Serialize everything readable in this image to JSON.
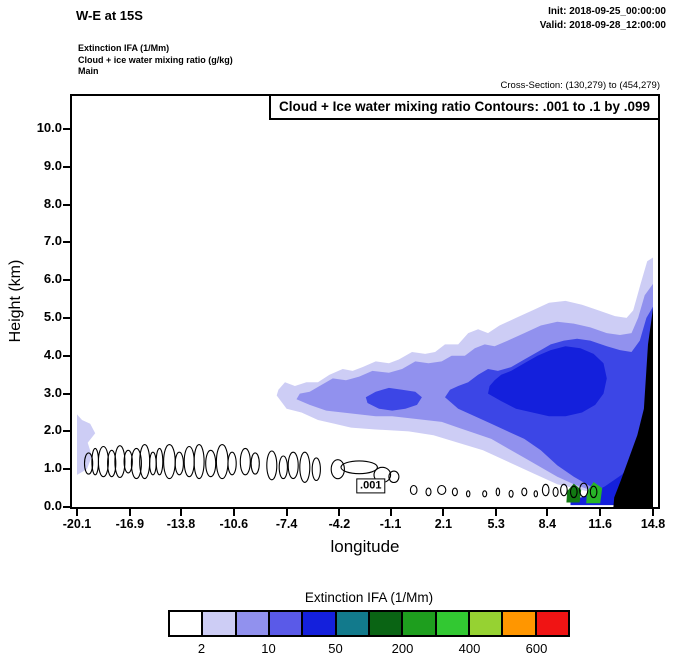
{
  "header": {
    "title": "W-E at 15S",
    "init": "Init: 2018-09-25_00:00:00",
    "valid": "Valid: 2018-09-28_12:00:00",
    "layers": [
      "Extinction IFA  (1/Mm)",
      "Cloud + ice water mixing ratio   (g/kg)",
      "Main"
    ],
    "cross_section": "Cross-Section: (130,279) to (454,279)"
  },
  "chart_data": {
    "type": "contour",
    "title": "Cloud + Ice water mixing ratio Contours: .001 to .1 by .099",
    "xlabel": "longitude",
    "ylabel": "Height (km)",
    "xlim": [
      -20.1,
      14.8
    ],
    "ylim": [
      0,
      10.87
    ],
    "grid": false,
    "xticks": [
      "-20.1",
      "-16.9",
      "-13.8",
      "-10.6",
      "-7.4",
      "-4.2",
      "-1.1",
      "2.1",
      "5.3",
      "8.4",
      "11.6",
      "14.8"
    ],
    "yticks": [
      "0.0",
      "1.0",
      "2.0",
      "3.0",
      "4.0",
      "5.0",
      "6.0",
      "7.0",
      "8.0",
      "9.0",
      "10.0"
    ],
    "contour_label": {
      "text": ".001",
      "lon": -2.3,
      "km": 0.55
    },
    "contour_levels_note": ".001 to .1 by .099",
    "regions": [
      {
        "name": "extinction-2-10-west-edge",
        "color": "#cdcdf5",
        "points": [
          [
            -20.1,
            0.85
          ],
          [
            -19.5,
            1.0
          ],
          [
            -19.2,
            1.35
          ],
          [
            -19.45,
            1.7
          ],
          [
            -19.0,
            1.95
          ],
          [
            -19.3,
            2.2
          ],
          [
            -19.8,
            2.3
          ],
          [
            -20.1,
            2.45
          ]
        ]
      },
      {
        "name": "extinction-2-10-main",
        "color": "#cdcdf5",
        "points": [
          [
            -8.0,
            2.95
          ],
          [
            -7.4,
            2.6
          ],
          [
            -6.5,
            2.5
          ],
          [
            -5.5,
            2.3
          ],
          [
            -4.5,
            2.2
          ],
          [
            -3.5,
            2.1
          ],
          [
            -2.0,
            2.05
          ],
          [
            0.0,
            2.0
          ],
          [
            1.5,
            1.9
          ],
          [
            3.0,
            1.7
          ],
          [
            4.5,
            1.5
          ],
          [
            6.0,
            1.2
          ],
          [
            7.5,
            0.9
          ],
          [
            9.0,
            0.6
          ],
          [
            10.5,
            0.45
          ],
          [
            12.0,
            0.3
          ],
          [
            13.5,
            0.15
          ],
          [
            14.8,
            0.1
          ],
          [
            14.8,
            6.6
          ],
          [
            14.45,
            6.5
          ],
          [
            14.05,
            5.9
          ],
          [
            13.6,
            5.2
          ],
          [
            13.2,
            5.0
          ],
          [
            12.5,
            5.05
          ],
          [
            11.5,
            5.2
          ],
          [
            10.5,
            5.35
          ],
          [
            9.5,
            5.45
          ],
          [
            8.5,
            5.4
          ],
          [
            7.5,
            5.2
          ],
          [
            6.5,
            5.0
          ],
          [
            5.5,
            4.8
          ],
          [
            4.8,
            4.6
          ],
          [
            4.2,
            4.7
          ],
          [
            3.6,
            4.6
          ],
          [
            3.0,
            4.3
          ],
          [
            2.2,
            4.3
          ],
          [
            1.6,
            4.1
          ],
          [
            1.0,
            4.05
          ],
          [
            0.2,
            4.1
          ],
          [
            -0.6,
            3.9
          ],
          [
            -1.2,
            3.8
          ],
          [
            -2.0,
            3.85
          ],
          [
            -2.8,
            3.7
          ],
          [
            -3.4,
            3.6
          ],
          [
            -4.0,
            3.65
          ],
          [
            -4.8,
            3.5
          ],
          [
            -5.5,
            3.3
          ],
          [
            -6.2,
            3.3
          ],
          [
            -6.9,
            3.2
          ],
          [
            -7.5,
            3.3
          ],
          [
            -7.9,
            3.1
          ]
        ]
      },
      {
        "name": "extinction-10-50",
        "color": "#9191ee",
        "points": [
          [
            -6.8,
            2.85
          ],
          [
            -6.0,
            2.7
          ],
          [
            -5.0,
            2.55
          ],
          [
            -4.0,
            2.5
          ],
          [
            -3.0,
            2.45
          ],
          [
            -2.0,
            2.4
          ],
          [
            -1.0,
            2.4
          ],
          [
            0.0,
            2.35
          ],
          [
            1.0,
            2.3
          ],
          [
            2.0,
            2.25
          ],
          [
            3.0,
            2.1
          ],
          [
            4.0,
            1.95
          ],
          [
            5.0,
            1.8
          ],
          [
            6.0,
            1.55
          ],
          [
            7.0,
            1.3
          ],
          [
            8.0,
            1.05
          ],
          [
            9.0,
            0.8
          ],
          [
            10.0,
            0.6
          ],
          [
            11.0,
            0.45
          ],
          [
            12.0,
            0.3
          ],
          [
            13.0,
            0.2
          ],
          [
            14.8,
            0.15
          ],
          [
            14.8,
            5.9
          ],
          [
            14.3,
            5.6
          ],
          [
            13.9,
            5.0
          ],
          [
            13.5,
            4.6
          ],
          [
            12.8,
            4.55
          ],
          [
            12.0,
            4.6
          ],
          [
            11.0,
            4.75
          ],
          [
            10.0,
            4.85
          ],
          [
            9.0,
            4.9
          ],
          [
            8.0,
            4.8
          ],
          [
            7.0,
            4.6
          ],
          [
            6.0,
            4.4
          ],
          [
            5.2,
            4.25
          ],
          [
            4.6,
            4.3
          ],
          [
            4.0,
            4.2
          ],
          [
            3.4,
            4.0
          ],
          [
            2.6,
            4.0
          ],
          [
            2.0,
            3.85
          ],
          [
            1.2,
            3.8
          ],
          [
            0.4,
            3.85
          ],
          [
            -0.4,
            3.65
          ],
          [
            -1.2,
            3.55
          ],
          [
            -2.2,
            3.6
          ],
          [
            -3.0,
            3.45
          ],
          [
            -3.8,
            3.35
          ],
          [
            -4.6,
            3.4
          ],
          [
            -5.4,
            3.2
          ],
          [
            -6.0,
            3.05
          ],
          [
            -6.6,
            3.0
          ]
        ]
      },
      {
        "name": "extinction-50-200-main",
        "color": "#3c46e6",
        "points": [
          [
            2.2,
            2.9
          ],
          [
            3.0,
            2.6
          ],
          [
            4.0,
            2.4
          ],
          [
            5.0,
            2.2
          ],
          [
            6.0,
            2.0
          ],
          [
            7.0,
            1.8
          ],
          [
            8.0,
            1.5
          ],
          [
            9.0,
            1.1
          ],
          [
            10.0,
            0.8
          ],
          [
            11.0,
            0.55
          ],
          [
            12.0,
            0.4
          ],
          [
            13.0,
            0.3
          ],
          [
            14.8,
            0.25
          ],
          [
            14.8,
            5.3
          ],
          [
            14.4,
            5.0
          ],
          [
            14.0,
            4.4
          ],
          [
            13.5,
            4.1
          ],
          [
            12.8,
            4.15
          ],
          [
            12.0,
            4.25
          ],
          [
            11.0,
            4.4
          ],
          [
            10.2,
            4.45
          ],
          [
            9.4,
            4.4
          ],
          [
            8.6,
            4.3
          ],
          [
            7.8,
            4.1
          ],
          [
            7.0,
            3.9
          ],
          [
            6.2,
            3.7
          ],
          [
            5.4,
            3.6
          ],
          [
            4.8,
            3.65
          ],
          [
            4.2,
            3.5
          ],
          [
            3.6,
            3.3
          ],
          [
            3.0,
            3.2
          ],
          [
            2.5,
            3.1
          ]
        ]
      },
      {
        "name": "extinction-50-200-west",
        "color": "#3c46e6",
        "points": [
          [
            -2.5,
            2.75
          ],
          [
            -1.8,
            2.6
          ],
          [
            -1.0,
            2.55
          ],
          [
            -0.2,
            2.6
          ],
          [
            0.5,
            2.7
          ],
          [
            0.8,
            2.9
          ],
          [
            0.4,
            3.05
          ],
          [
            -0.4,
            3.1
          ],
          [
            -1.2,
            3.15
          ],
          [
            -2.0,
            3.05
          ],
          [
            -2.6,
            2.9
          ]
        ]
      },
      {
        "name": "extinction-200-400-core",
        "color": "#1420dc",
        "points": [
          [
            4.8,
            3.0
          ],
          [
            5.6,
            2.8
          ],
          [
            6.5,
            2.6
          ],
          [
            7.5,
            2.5
          ],
          [
            8.5,
            2.4
          ],
          [
            9.5,
            2.4
          ],
          [
            10.5,
            2.5
          ],
          [
            11.3,
            2.7
          ],
          [
            11.8,
            3.0
          ],
          [
            12.0,
            3.4
          ],
          [
            11.8,
            3.8
          ],
          [
            11.2,
            4.05
          ],
          [
            10.4,
            4.2
          ],
          [
            9.5,
            4.25
          ],
          [
            8.6,
            4.15
          ],
          [
            7.8,
            4.0
          ],
          [
            7.0,
            3.8
          ],
          [
            6.2,
            3.6
          ],
          [
            5.6,
            3.5
          ],
          [
            5.2,
            3.35
          ],
          [
            4.9,
            3.2
          ]
        ]
      },
      {
        "name": "extinction-200-400-low-east",
        "color": "#1420dc",
        "points": [
          [
            9.8,
            0.05
          ],
          [
            14.8,
            0.05
          ],
          [
            14.8,
            1.9
          ],
          [
            13.9,
            1.3
          ],
          [
            12.9,
            0.85
          ],
          [
            11.9,
            0.55
          ],
          [
            10.8,
            0.3
          ],
          [
            9.8,
            0.18
          ]
        ]
      },
      {
        "name": "extinction-400-patch-dark-green",
        "color": "#127a12",
        "points": [
          [
            9.55,
            0.12
          ],
          [
            10.35,
            0.12
          ],
          [
            10.45,
            0.45
          ],
          [
            10.0,
            0.62
          ],
          [
            9.6,
            0.42
          ]
        ]
      },
      {
        "name": "extinction-500-patch-green",
        "color": "#28b428",
        "points": [
          [
            10.75,
            0.1
          ],
          [
            11.6,
            0.1
          ],
          [
            11.72,
            0.5
          ],
          [
            11.2,
            0.66
          ],
          [
            10.8,
            0.4
          ]
        ]
      },
      {
        "name": "terrain-black-east",
        "color": "#000000",
        "points": [
          [
            12.4,
            0.0
          ],
          [
            14.8,
            0.0
          ],
          [
            14.8,
            5.25
          ],
          [
            14.5,
            4.3
          ],
          [
            14.25,
            2.6
          ],
          [
            13.85,
            1.9
          ],
          [
            13.35,
            1.3
          ],
          [
            12.85,
            0.7
          ],
          [
            12.45,
            0.25
          ]
        ]
      }
    ],
    "contour_ellipses": [
      [
        -19.4,
        1.15,
        0.25,
        0.28
      ],
      [
        -19.0,
        1.2,
        0.2,
        0.35
      ],
      [
        -18.5,
        1.2,
        0.3,
        0.4
      ],
      [
        -18.0,
        1.15,
        0.25,
        0.35
      ],
      [
        -17.5,
        1.2,
        0.3,
        0.42
      ],
      [
        -17.0,
        1.2,
        0.25,
        0.3
      ],
      [
        -16.5,
        1.15,
        0.3,
        0.4
      ],
      [
        -16.0,
        1.2,
        0.3,
        0.45
      ],
      [
        -15.5,
        1.15,
        0.2,
        0.3
      ],
      [
        -15.1,
        1.2,
        0.2,
        0.35
      ],
      [
        -14.5,
        1.2,
        0.35,
        0.45
      ],
      [
        -13.9,
        1.15,
        0.25,
        0.3
      ],
      [
        -13.3,
        1.2,
        0.3,
        0.4
      ],
      [
        -12.7,
        1.2,
        0.3,
        0.45
      ],
      [
        -12.0,
        1.15,
        0.3,
        0.35
      ],
      [
        -11.3,
        1.2,
        0.35,
        0.45
      ],
      [
        -10.7,
        1.15,
        0.25,
        0.3
      ],
      [
        -9.9,
        1.2,
        0.3,
        0.35
      ],
      [
        -9.3,
        1.15,
        0.25,
        0.28
      ],
      [
        -8.3,
        1.1,
        0.3,
        0.38
      ],
      [
        -7.6,
        1.05,
        0.25,
        0.3
      ],
      [
        -7.0,
        1.1,
        0.3,
        0.35
      ],
      [
        -6.3,
        1.05,
        0.3,
        0.4
      ],
      [
        -5.6,
        1.0,
        0.25,
        0.3
      ],
      [
        -4.3,
        1.0,
        0.4,
        0.25
      ],
      [
        -3.0,
        1.05,
        1.1,
        0.17
      ],
      [
        -1.6,
        0.85,
        0.5,
        0.2
      ],
      [
        -0.9,
        0.8,
        0.3,
        0.15
      ],
      [
        0.3,
        0.45,
        0.2,
        0.12
      ],
      [
        1.2,
        0.4,
        0.15,
        0.1
      ],
      [
        2.0,
        0.45,
        0.25,
        0.12
      ],
      [
        2.8,
        0.4,
        0.15,
        0.1
      ],
      [
        3.6,
        0.35,
        0.1,
        0.08
      ],
      [
        4.6,
        0.35,
        0.12,
        0.08
      ],
      [
        5.4,
        0.4,
        0.1,
        0.1
      ],
      [
        6.2,
        0.35,
        0.12,
        0.09
      ],
      [
        7.0,
        0.4,
        0.15,
        0.1
      ],
      [
        7.7,
        0.35,
        0.1,
        0.08
      ],
      [
        8.3,
        0.45,
        0.2,
        0.15
      ],
      [
        8.9,
        0.4,
        0.15,
        0.12
      ],
      [
        9.4,
        0.45,
        0.2,
        0.15
      ],
      [
        10.0,
        0.4,
        0.2,
        0.15
      ],
      [
        10.6,
        0.45,
        0.25,
        0.18
      ],
      [
        11.2,
        0.4,
        0.2,
        0.15
      ]
    ],
    "colorbar": {
      "title": "Extinction IFA  (1/Mm)",
      "colors": [
        "#ffffff",
        "#cdcdf5",
        "#9191ee",
        "#5a5ae8",
        "#1420dc",
        "#127a8c",
        "#0a6414",
        "#1e9e1e",
        "#32c832",
        "#96d232",
        "#ff9600",
        "#f01414"
      ],
      "labels": [
        "2",
        "10",
        "50",
        "200",
        "400",
        "600"
      ]
    }
  }
}
